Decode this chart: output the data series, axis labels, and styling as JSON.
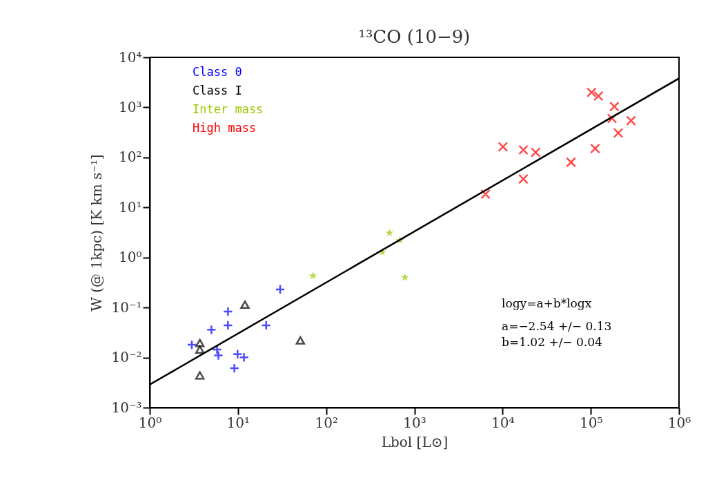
{
  "chart_data": {
    "type": "scatter",
    "title": "¹³CO (10−9)",
    "xlabel": "Lbol [L⊙]",
    "ylabel": "W (@ 1kpc) [K km s⁻¹]",
    "log": "xy",
    "xlim": [
      1,
      1000000
    ],
    "ylim": [
      0.001,
      10000
    ],
    "xticks": [
      {
        "value": 1,
        "label": "10⁰"
      },
      {
        "value": 10,
        "label": "10¹"
      },
      {
        "value": 100,
        "label": "10²"
      },
      {
        "value": 1000,
        "label": "10³"
      },
      {
        "value": 10000,
        "label": "10⁴"
      },
      {
        "value": 100000,
        "label": "10⁵"
      },
      {
        "value": 1000000,
        "label": "10⁶"
      }
    ],
    "yticks": [
      {
        "value": 0.001,
        "label": "10⁻³"
      },
      {
        "value": 0.01,
        "label": "10⁻²"
      },
      {
        "value": 0.1,
        "label": "10⁻¹"
      },
      {
        "value": 1,
        "label": "10⁰"
      },
      {
        "value": 10,
        "label": "10¹"
      },
      {
        "value": 100,
        "label": "10²"
      },
      {
        "value": 1000,
        "label": "10³"
      },
      {
        "value": 10000,
        "label": "10⁴"
      }
    ],
    "grid": false,
    "annotations": [
      "logy=a+b*logx",
      "a=−2.54 +/− 0.13",
      "b=1.02 +/− 0.04"
    ],
    "series": [
      {
        "name": "Class 0",
        "color": "#0000ff",
        "marker": "cross",
        "x": [
          3.0,
          5.0,
          7.7,
          7.7,
          5.8,
          6.0,
          9.9,
          11.7,
          9.1,
          20.9,
          30.1
        ],
        "values": [
          0.018,
          0.036,
          0.083,
          0.044,
          0.0145,
          0.011,
          0.0117,
          0.0101,
          0.0061,
          0.044,
          0.23
        ]
      },
      {
        "name": "Class I",
        "color": "#000000",
        "marker": "triangle",
        "x": [
          3.7,
          3.7,
          3.7,
          12.0,
          51
        ],
        "values": [
          0.0195,
          0.0145,
          0.0044,
          0.114,
          0.022
        ]
      },
      {
        "name": "Inter mass",
        "color": "#99cc00",
        "marker": "star",
        "x": [
          71,
          522,
          684,
          433,
          781
        ],
        "values": [
          0.43,
          3.1,
          2.2,
          1.28,
          0.4
        ]
      },
      {
        "name": "High mass",
        "color": "#ff0000",
        "marker": "x",
        "x": [
          6400,
          10100,
          17200,
          23700,
          17200,
          59700,
          102000,
          122000,
          185000,
          174000,
          112000,
          205000,
          286000
        ],
        "values": [
          18.5,
          163,
          141,
          126,
          37,
          80,
          1990,
          1690,
          1040,
          600,
          150,
          307,
          540
        ]
      },
      {
        "type": "line",
        "color": "#000000",
        "x": [
          1,
          1000000
        ],
        "values": [
          0.00288,
          3800
        ]
      }
    ]
  }
}
